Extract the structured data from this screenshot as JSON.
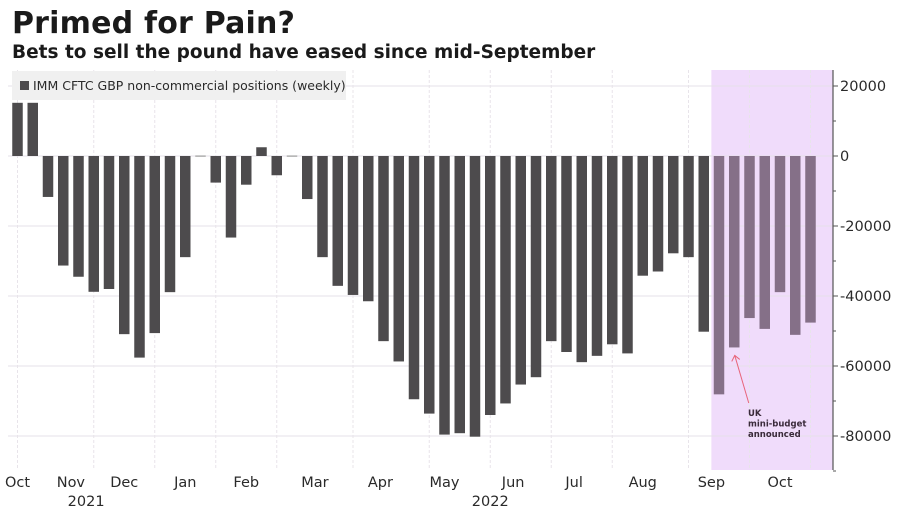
{
  "header": {
    "title": "Primed for Pain?",
    "subtitle": "Bets to sell the pound have eased since mid-September"
  },
  "chart_data": {
    "type": "bar",
    "title": "Primed for Pain?",
    "subtitle": "Bets to sell the pound have eased since mid-September",
    "xlabel": "",
    "ylabel": "",
    "ylim": [
      -90000,
      24000
    ],
    "y_axis_position": "right",
    "y_ticks": [
      20000,
      0,
      -20000,
      -40000,
      -60000,
      -80000
    ],
    "y_tick_labels": [
      "20000",
      "0",
      "-20000",
      "-40000",
      "-60000",
      "-80000"
    ],
    "grid": true,
    "legend": {
      "placement": "top-left",
      "entries": [
        "IMM CFTC GBP non-commercial positions (weekly)"
      ]
    },
    "series": [
      {
        "name": "IMM CFTC GBP non-commercial positions (weekly)",
        "color": "#4d4b4d",
        "values": [
          15200,
          15200,
          -11700,
          -31300,
          -34500,
          -38800,
          -38000,
          -50900,
          -57600,
          -50600,
          -38900,
          -28900,
          -300,
          -7600,
          -23300,
          -8200,
          2500,
          -5500,
          -300,
          -12300,
          -28900,
          -37100,
          -39700,
          -41500,
          -52900,
          -58700,
          -69500,
          -73600,
          -79600,
          -79200,
          -80200,
          -74000,
          -70700,
          -65300,
          -63200,
          -52900,
          -56000,
          -58900,
          -57100,
          -53800,
          -56400,
          -34200,
          -33000,
          -27800,
          -28900,
          -50200,
          -68100,
          -54700,
          -46300,
          -49400,
          -38900,
          -51100,
          -47600
        ]
      }
    ],
    "x_month_labels": [
      {
        "label": "Oct",
        "bar_index": 0
      },
      {
        "label": "Nov",
        "bar_index": 3.5
      },
      {
        "label": "Dec",
        "bar_index": 7
      },
      {
        "label": "Jan",
        "bar_index": 11
      },
      {
        "label": "Feb",
        "bar_index": 15
      },
      {
        "label": "Mar",
        "bar_index": 19.5
      },
      {
        "label": "Apr",
        "bar_index": 23.8
      },
      {
        "label": "May",
        "bar_index": 28
      },
      {
        "label": "Jun",
        "bar_index": 32.5
      },
      {
        "label": "Jul",
        "bar_index": 36.5
      },
      {
        "label": "Aug",
        "bar_index": 41
      },
      {
        "label": "Sep",
        "bar_index": 45.5
      },
      {
        "label": "Oct",
        "bar_index": 50
      }
    ],
    "x_year_labels": [
      {
        "label": "2021",
        "bar_index": 4.5
      },
      {
        "label": "2022",
        "bar_index": 31
      }
    ],
    "month_gridlines_bar_index": [
      0,
      5,
      9,
      13,
      17,
      22,
      27,
      31,
      35,
      39,
      44,
      48,
      52
    ],
    "highlight_region": {
      "from_bar_index": 45.5,
      "to_bar_index": 53.5,
      "color": "#f0dcfb",
      "bar_color": "#857088"
    },
    "annotations": [
      {
        "text_lines": [
          "UK",
          "mini-budget",
          "announced"
        ],
        "points_to_bar_index": 47,
        "arrow_color": "#e8657a"
      }
    ]
  }
}
